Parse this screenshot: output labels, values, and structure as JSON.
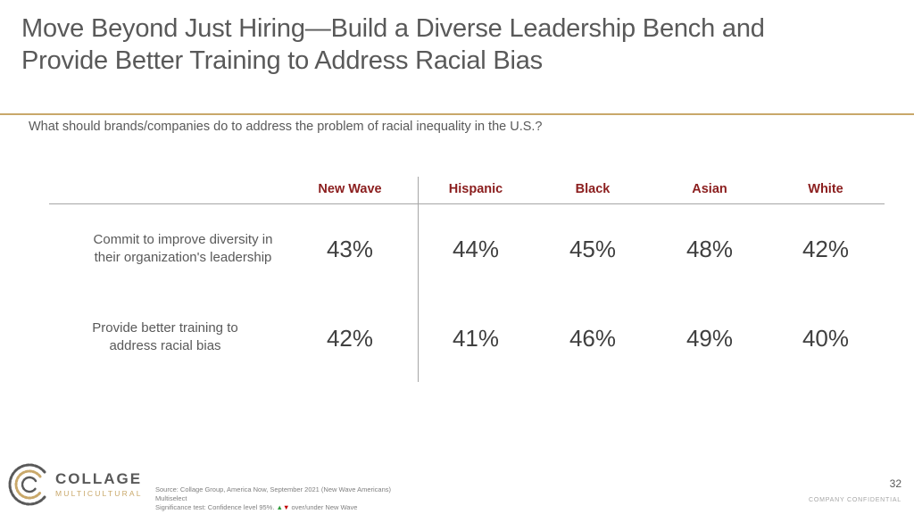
{
  "slide": {
    "title_line1": "Move Beyond Just Hiring—Build a Diverse Leadership Bench and",
    "title_line2": "Provide Better Training to Address Racial Bias",
    "question": "What should brands/companies do to address the problem of racial inequality in the U.S.?"
  },
  "table": {
    "columns": [
      "New Wave",
      "Hispanic",
      "Black",
      "Asian",
      "White"
    ],
    "rows": [
      {
        "label_line1": "Commit to improve diversity in",
        "label_line2": "their organization's leadership",
        "values": [
          "43%",
          "44%",
          "45%",
          "48%",
          "42%"
        ]
      },
      {
        "label_line1": "Provide better training to",
        "label_line2": "address racial bias",
        "values": [
          "42%",
          "41%",
          "46%",
          "49%",
          "40%"
        ]
      }
    ]
  },
  "logo": {
    "name": "COLLAGE",
    "sub": "MULTICULTURAL"
  },
  "footer": {
    "source": "Source: Collage Group, America Now, September 2021 (New Wave Americans)",
    "multiselect": "Multiselect",
    "sig_prefix": "Significance test: Confidence level 95%.",
    "sig_suffix": "over/under New Wave",
    "page_number": "32",
    "confidential": "COMPANY CONFIDENTIAL"
  },
  "colors": {
    "accent_gold": "#c9a86a",
    "header_red": "#8b1e1e",
    "up_green": "#2e9c3a",
    "down_red": "#c00000"
  }
}
